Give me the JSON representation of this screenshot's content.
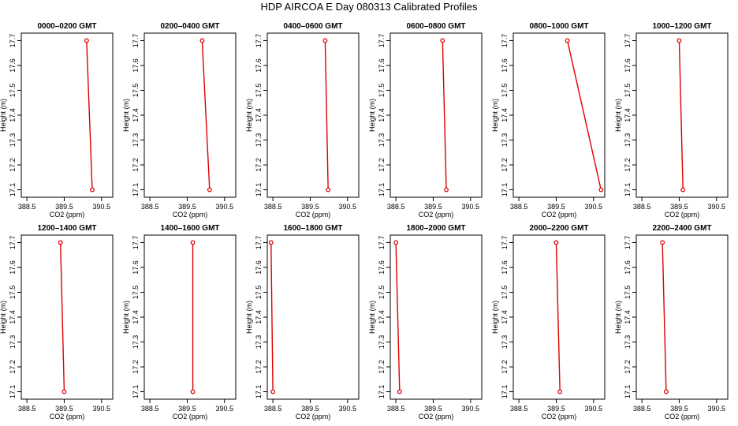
{
  "header": {
    "title": "HDP  AIRCOA E  Day 080313  Calibrated Profiles"
  },
  "chart_data": {
    "type": "line",
    "layout": "2 rows x 6 columns of small-multiple panels",
    "title": "HDP  AIRCOA E  Day 080313  Calibrated Profiles",
    "xlabel": "CO2 (ppm)",
    "ylabel": "Height (m)",
    "xlim": [
      388.35,
      390.8
    ],
    "ylim": [
      17.07,
      17.73
    ],
    "x_ticks": [
      388.5,
      389.5,
      390.5
    ],
    "x_tick_labels": [
      "388.5",
      "389.5",
      "390.5"
    ],
    "y_ticks": [
      17.1,
      17.2,
      17.3,
      17.4,
      17.5,
      17.6,
      17.7
    ],
    "y_tick_labels": [
      "17.1",
      "17.2",
      "17.3",
      "17.4",
      "17.5",
      "17.6",
      "17.7"
    ],
    "series_color": "#dd0000",
    "panels": [
      {
        "title": "0000–0200 GMT",
        "points": [
          {
            "co2": 390.1,
            "height": 17.7
          },
          {
            "co2": 390.25,
            "height": 17.1
          }
        ]
      },
      {
        "title": "0200–0400 GMT",
        "points": [
          {
            "co2": 389.9,
            "height": 17.7
          },
          {
            "co2": 390.1,
            "height": 17.1
          }
        ]
      },
      {
        "title": "0400–0600 GMT",
        "points": [
          {
            "co2": 389.9,
            "height": 17.7
          },
          {
            "co2": 389.98,
            "height": 17.1
          }
        ]
      },
      {
        "title": "0600–0800 GMT",
        "points": [
          {
            "co2": 389.75,
            "height": 17.7
          },
          {
            "co2": 389.85,
            "height": 17.1
          }
        ]
      },
      {
        "title": "0800–1000 GMT",
        "points": [
          {
            "co2": 389.8,
            "height": 17.7
          },
          {
            "co2": 390.7,
            "height": 17.1
          }
        ]
      },
      {
        "title": "1000–1200 GMT",
        "points": [
          {
            "co2": 389.5,
            "height": 17.7
          },
          {
            "co2": 389.6,
            "height": 17.1
          }
        ]
      },
      {
        "title": "1200–1400 GMT",
        "points": [
          {
            "co2": 389.4,
            "height": 17.7
          },
          {
            "co2": 389.5,
            "height": 17.1
          }
        ]
      },
      {
        "title": "1400–1600 GMT",
        "points": [
          {
            "co2": 389.65,
            "height": 17.7
          },
          {
            "co2": 389.65,
            "height": 17.1
          }
        ]
      },
      {
        "title": "1600–1800 GMT",
        "points": [
          {
            "co2": 388.45,
            "height": 17.7
          },
          {
            "co2": 388.5,
            "height": 17.1
          }
        ]
      },
      {
        "title": "1800–2000 GMT",
        "points": [
          {
            "co2": 388.5,
            "height": 17.7
          },
          {
            "co2": 388.6,
            "height": 17.1
          }
        ]
      },
      {
        "title": "2000–2200 GMT",
        "points": [
          {
            "co2": 389.5,
            "height": 17.7
          },
          {
            "co2": 389.6,
            "height": 17.1
          }
        ]
      },
      {
        "title": "2200–2400 GMT",
        "points": [
          {
            "co2": 389.05,
            "height": 17.7
          },
          {
            "co2": 389.15,
            "height": 17.1
          }
        ]
      }
    ]
  }
}
